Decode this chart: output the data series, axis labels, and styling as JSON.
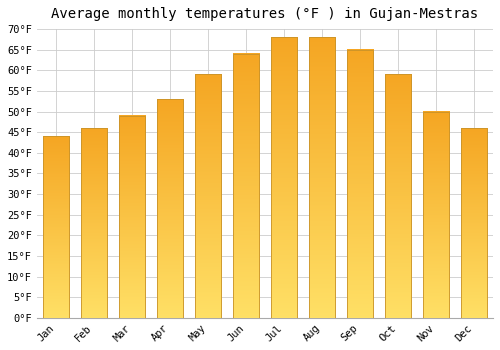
{
  "title": "Average monthly temperatures (°F ) in Gujan-Mestras",
  "months": [
    "Jan",
    "Feb",
    "Mar",
    "Apr",
    "May",
    "Jun",
    "Jul",
    "Aug",
    "Sep",
    "Oct",
    "Nov",
    "Dec"
  ],
  "values": [
    44,
    46,
    49,
    53,
    59,
    64,
    68,
    68,
    65,
    59,
    50,
    46
  ],
  "bar_color_bottom": "#F5A623",
  "bar_color_top": "#FFD966",
  "bar_edge_color": "#C8922A",
  "ylim": [
    0,
    70
  ],
  "yticks": [
    0,
    5,
    10,
    15,
    20,
    25,
    30,
    35,
    40,
    45,
    50,
    55,
    60,
    65,
    70
  ],
  "ytick_labels": [
    "0°F",
    "5°F",
    "10°F",
    "15°F",
    "20°F",
    "25°F",
    "30°F",
    "35°F",
    "40°F",
    "45°F",
    "50°F",
    "55°F",
    "60°F",
    "65°F",
    "70°F"
  ],
  "background_color": "#FFFFFF",
  "grid_color": "#CCCCCC",
  "title_fontsize": 10,
  "tick_fontsize": 7.5,
  "bar_width": 0.7
}
